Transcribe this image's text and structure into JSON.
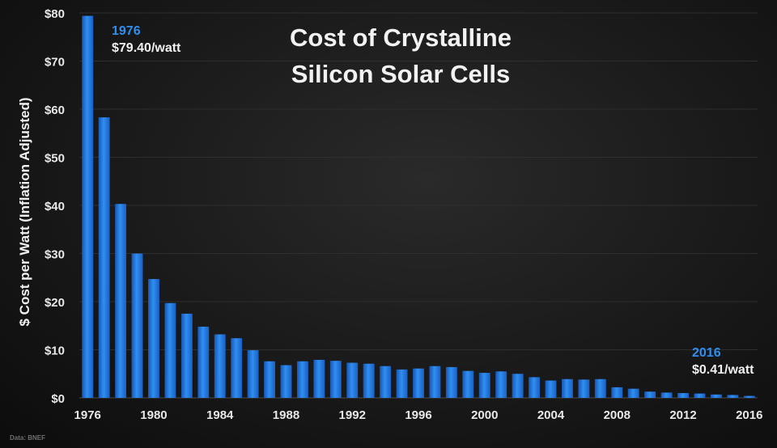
{
  "chart_data": {
    "type": "bar",
    "title_lines": [
      "Cost of Crystalline",
      "Silicon Solar Cells"
    ],
    "ylabel": "$ Cost per Watt (Inflation Adjusted)",
    "xlabel": "",
    "ylim": [
      0,
      80
    ],
    "y_ticks": [
      "$0",
      "$10",
      "$20",
      "$30",
      "$40",
      "$50",
      "$60",
      "$70",
      "$80"
    ],
    "x_tick_labels": [
      "1976",
      "1980",
      "1984",
      "1988",
      "1992",
      "1996",
      "2000",
      "2004",
      "2008",
      "2012",
      "2016"
    ],
    "grid": true,
    "categories": [
      "1976",
      "1977",
      "1978",
      "1979",
      "1980",
      "1981",
      "1982",
      "1983",
      "1984",
      "1985",
      "1986",
      "1987",
      "1988",
      "1989",
      "1990",
      "1991",
      "1992",
      "1993",
      "1994",
      "1995",
      "1996",
      "1997",
      "1998",
      "1999",
      "2000",
      "2001",
      "2002",
      "2003",
      "2004",
      "2005",
      "2006",
      "2007",
      "2008",
      "2009",
      "2010",
      "2011",
      "2012",
      "2013",
      "2014",
      "2015",
      "2016"
    ],
    "values": [
      79.4,
      58.3,
      40.3,
      30.0,
      24.7,
      19.7,
      17.5,
      14.8,
      13.2,
      12.4,
      9.9,
      7.6,
      6.8,
      7.6,
      7.9,
      7.7,
      7.3,
      7.1,
      6.6,
      5.9,
      6.1,
      6.6,
      6.4,
      5.6,
      5.2,
      5.5,
      5.0,
      4.3,
      3.6,
      3.9,
      3.8,
      3.9,
      2.2,
      1.9,
      1.3,
      1.1,
      1.0,
      0.9,
      0.7,
      0.6,
      0.41
    ],
    "series_color": "#2a7de6",
    "annotations": [
      {
        "year": "1976",
        "text": "$79.40/watt"
      },
      {
        "year": "2016",
        "text": "$0.41/watt"
      }
    ],
    "source": "Data: BNEF"
  }
}
